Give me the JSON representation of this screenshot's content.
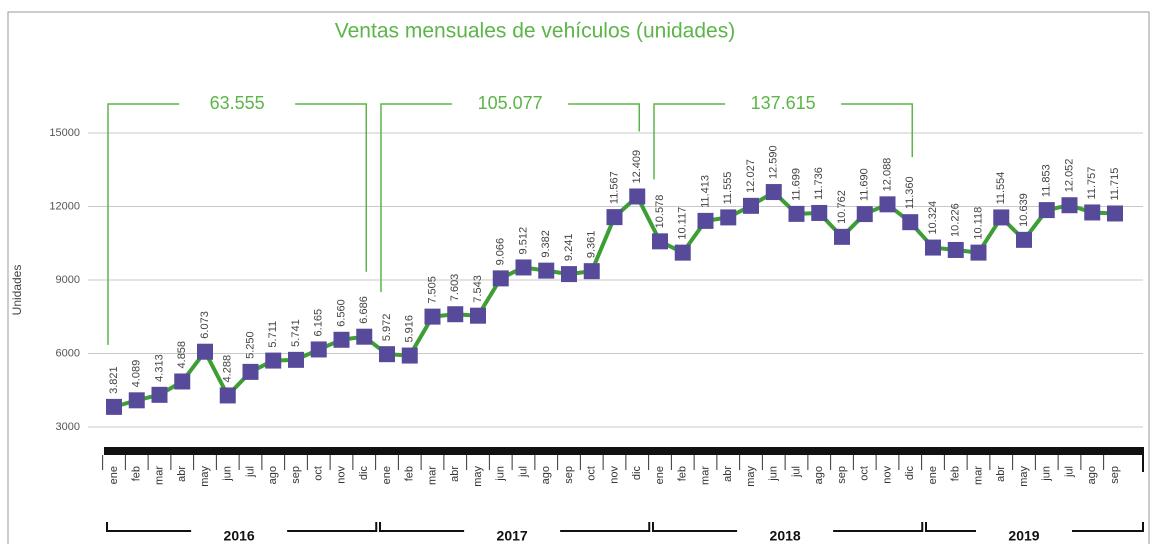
{
  "chart_data": {
    "type": "line",
    "title": "Ventas mensuales de vehículos  (unidades)",
    "y_label": "Unidades",
    "categories": [
      "ene",
      "feb",
      "mar",
      "abr",
      "may",
      "jun",
      "jul",
      "ago",
      "sep",
      "oct",
      "nov",
      "dic",
      "ene",
      "feb",
      "mar",
      "abr",
      "may",
      "jun",
      "jul",
      "ago",
      "sep",
      "oct",
      "nov",
      "dic",
      "ene",
      "feb",
      "mar",
      "abr",
      "may",
      "jun",
      "jul",
      "ago",
      "sep",
      "oct",
      "nov",
      "dic",
      "ene",
      "feb",
      "mar",
      "abr",
      "may",
      "jun",
      "jul",
      "ago",
      "sep"
    ],
    "years": [
      "2016",
      "2017",
      "2018",
      "2019"
    ],
    "annotations": [
      "63.555",
      "105.077",
      "137.615"
    ],
    "series": [
      {
        "color": "#3d9e34",
        "marker_color": "#584a9a",
        "values": [
          3821,
          4089,
          4313,
          4858,
          6073,
          4288,
          5250,
          5711,
          5741,
          6165,
          6560,
          6686,
          5972,
          5916,
          7505,
          7603,
          7543,
          9066,
          9512,
          9382,
          9241,
          9361,
          11567,
          12409,
          10578,
          10117,
          11413,
          11555,
          12027,
          12590,
          11699,
          11736,
          10762,
          11690,
          12088,
          11360,
          10324,
          10226,
          10118,
          11554,
          10639,
          11853,
          12052,
          11757,
          11715
        ],
        "value_labels": [
          "3.821",
          "4.089",
          "4.313",
          "4.858",
          "6.073",
          "4.288",
          "5.250",
          "5.711",
          "5.741",
          "6.165",
          "6.560",
          "6.686",
          "5.972",
          "5.916",
          "7.505",
          "7.603",
          "7.543",
          "9.066",
          "9.512",
          "9.382",
          "9.241",
          "9.361",
          "11.567",
          "12.409",
          "10.578",
          "10.117",
          "11.413",
          "11.555",
          "12.027",
          "12.590",
          "11.699",
          "11.736",
          "10.762",
          "11.690",
          "12.088",
          "11.360",
          "10.324",
          "10.226",
          "10.118",
          "11.554",
          "10.639",
          "11.853",
          "12.052",
          "11.757",
          "11.715"
        ]
      }
    ],
    "ylim": [
      3000,
      15000
    ],
    "yticks": [
      3000,
      6000,
      9000,
      12000,
      15000
    ],
    "grid": true
  }
}
